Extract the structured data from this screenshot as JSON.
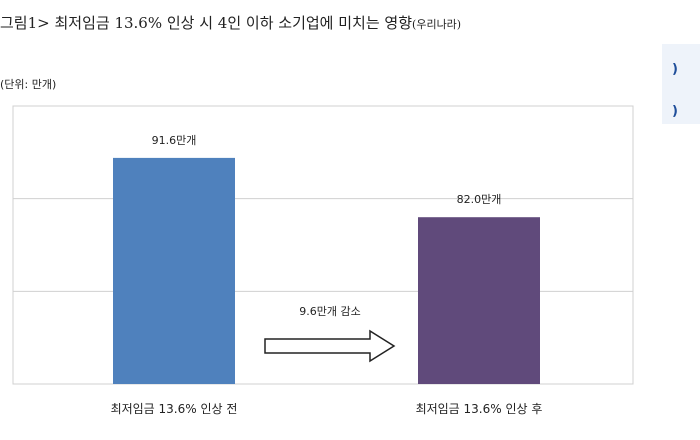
{
  "title": "그림1> 최저임금 13.6% 인상 시 4인 이하 소기업에 미치는 영향",
  "title_source": "(우리나라)",
  "side_marks": [
    ")",
    ")"
  ],
  "chart_data": {
    "type": "bar",
    "unit_label": "(단위: 만개)",
    "categories": [
      "최저임금 13.6% 인상 전",
      "최저임금 13.6% 인상 후"
    ],
    "values": [
      91.6,
      82.0
    ],
    "value_labels": [
      "91.6만개",
      "82.0만개"
    ],
    "colors": [
      "#4f81bd",
      "#604a7b"
    ],
    "annotation": "9.6만개 감소",
    "ylim": [
      55,
      100
    ],
    "gridlines": [
      70,
      85,
      100
    ],
    "grid": true,
    "xlabel": "",
    "ylabel": ""
  }
}
